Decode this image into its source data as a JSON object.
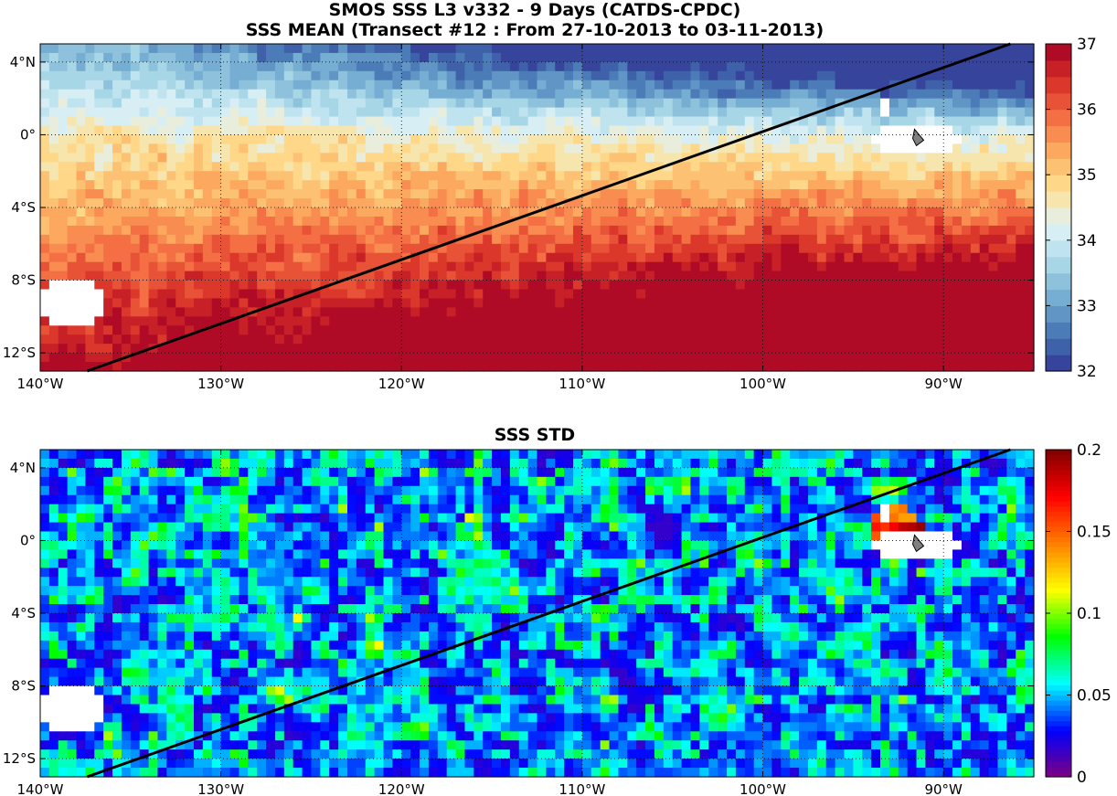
{
  "figure": {
    "title_line1": "SMOS SSS L3 v332 - 9 Days (CATDS-CPDC)",
    "title_line2": "SSS MEAN (Transect #12 : From 27-10-2013 to 03-11-2013)",
    "panel2_title": "SSS STD"
  },
  "map": {
    "lon_range": [
      140,
      85
    ],
    "lat_range": [
      -13,
      5
    ],
    "x_ticks": [
      {
        "value": 140,
        "label": "140°W"
      },
      {
        "value": 130,
        "label": "130°W"
      },
      {
        "value": 120,
        "label": "120°W"
      },
      {
        "value": 110,
        "label": "110°W"
      },
      {
        "value": 100,
        "label": "100°W"
      },
      {
        "value": 90,
        "label": "90°W"
      }
    ],
    "y_ticks": [
      {
        "value": 4,
        "label": "4°N"
      },
      {
        "value": 0,
        "label": "0°"
      },
      {
        "value": -4,
        "label": "4°S"
      },
      {
        "value": -8,
        "label": "8°S"
      },
      {
        "value": -12,
        "label": "12°S"
      }
    ],
    "transect": {
      "start": {
        "lon": 137.4,
        "lat": -13
      },
      "end": {
        "lon": 86.3,
        "lat": 5
      }
    }
  },
  "panels": [
    {
      "name": "SSS MEAN",
      "colormap": "jet-reversed-redblue",
      "colorbar": {
        "min": 32,
        "max": 37,
        "ticks": [
          32,
          33,
          34,
          35,
          36,
          37
        ],
        "levels": 20
      }
    },
    {
      "name": "SSS STD",
      "colormap": "jet",
      "colorbar": {
        "min": 0,
        "max": 0.2,
        "ticks": [
          "0",
          "0.05",
          "0.1",
          "0.15",
          "0.2"
        ],
        "levels": 64
      }
    }
  ],
  "colors": {
    "land": "#ffffff",
    "mean_ramp": [
      "#313695",
      "#4575b4",
      "#74add1",
      "#abd9e9",
      "#e0f3f8",
      "#fee090",
      "#fdae61",
      "#f46d43",
      "#d73027",
      "#a50026"
    ],
    "std_ramp": [
      "#7f0080",
      "#0000ff",
      "#00ffff",
      "#00ff00",
      "#ffff00",
      "#ff7f00",
      "#ff0000",
      "#800000"
    ],
    "transect": "#000000",
    "grid": "#000000"
  }
}
